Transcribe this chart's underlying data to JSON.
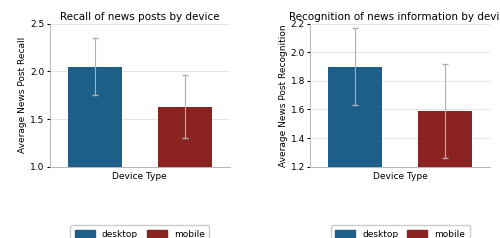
{
  "left": {
    "title": "Recall of news posts by device",
    "ylabel": "Average News Post Recall",
    "xlabel": "Device Type",
    "values": [
      2.05,
      1.63
    ],
    "errors_upper": [
      0.3,
      0.33
    ],
    "errors_lower": [
      0.3,
      0.33
    ],
    "ylim": [
      1.0,
      2.5
    ],
    "yticks": [
      1.0,
      1.5,
      2.0,
      2.5
    ],
    "bar_colors": [
      "#1e5f8a",
      "#8b2323"
    ]
  },
  "right": {
    "title": "Recognition of news information by device",
    "ylabel": "Average News Post Recognition",
    "xlabel": "Device Type",
    "values": [
      1.9,
      1.59
    ],
    "errors_upper": [
      0.27,
      0.33
    ],
    "errors_lower": [
      0.27,
      0.33
    ],
    "ylim": [
      1.2,
      2.2
    ],
    "yticks": [
      1.2,
      1.4,
      1.6,
      1.8,
      2.0,
      2.2
    ],
    "bar_colors": [
      "#1e5f8a",
      "#8b2323"
    ]
  },
  "legend_labels": [
    "desktop",
    "mobile"
  ],
  "legend_colors": [
    "#1e5f8a",
    "#8b2323"
  ],
  "error_color": "#b0b0b0",
  "background_color": "#ffffff",
  "bar_width": 0.6,
  "title_fontsize": 7.5,
  "axis_label_fontsize": 6.5,
  "tick_fontsize": 6.5,
  "legend_fontsize": 6.5
}
